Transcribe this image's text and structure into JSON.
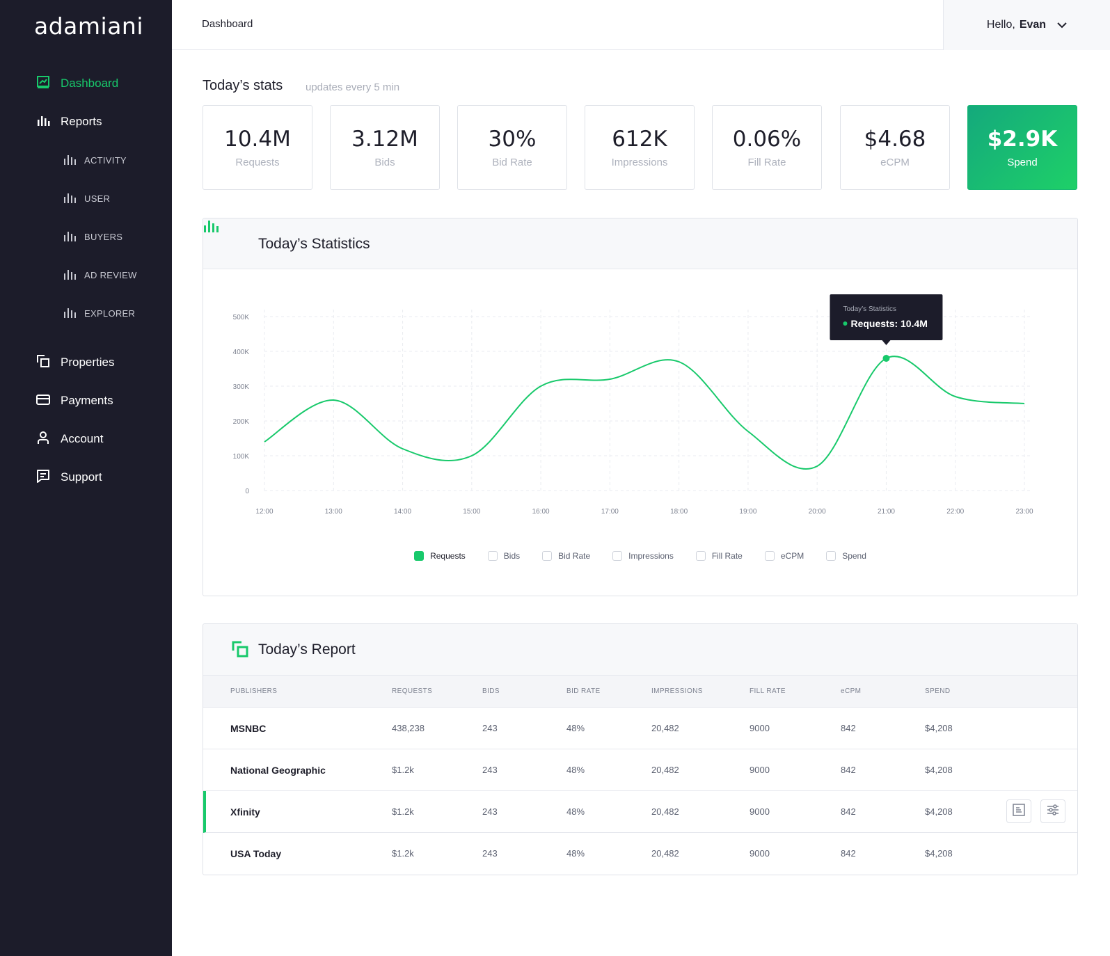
{
  "app": {
    "logo": "adamiani"
  },
  "sidebar": {
    "items": [
      {
        "label": "Dashboard",
        "icon": "dashboard-icon",
        "active": true
      },
      {
        "label": "Reports",
        "icon": "bar-chart-icon"
      },
      {
        "label": "Properties",
        "icon": "properties-icon"
      },
      {
        "label": "Payments",
        "icon": "credit-card-icon"
      },
      {
        "label": "Account",
        "icon": "user-icon"
      },
      {
        "label": "Support",
        "icon": "chat-icon"
      }
    ],
    "report_subitems": [
      "ACTIVITY",
      "USER",
      "BUYERS",
      "AD REVIEW",
      "EXPLORER"
    ]
  },
  "header": {
    "breadcrumb": "Dashboard",
    "greeting": "Hello,",
    "user_name": "Evan"
  },
  "stats": {
    "title": "Today’s stats",
    "subtitle": "updates every 5 min",
    "cards": [
      {
        "value": "10.4M",
        "label": "Requests"
      },
      {
        "value": "3.12M",
        "label": "Bids"
      },
      {
        "value": "30%",
        "label": "Bid Rate"
      },
      {
        "value": "612K",
        "label": "Impressions"
      },
      {
        "value": "0.06%",
        "label": "Fill Rate"
      },
      {
        "value": "$4.68",
        "label": "eCPM"
      },
      {
        "value": "$2.9K",
        "label": "Spend",
        "highlight": true
      }
    ]
  },
  "statistics_panel": {
    "title": "Today’s Statistics",
    "tooltip": {
      "title": "Today’s Statistics",
      "text": "Requests: 10.4M"
    },
    "legend": [
      {
        "label": "Requests",
        "checked": true
      },
      {
        "label": "Bids",
        "checked": false
      },
      {
        "label": "Bid Rate",
        "checked": false
      },
      {
        "label": "Impressions",
        "checked": false
      },
      {
        "label": "Fill Rate",
        "checked": false
      },
      {
        "label": "eCPM",
        "checked": false
      },
      {
        "label": "Spend",
        "checked": false
      }
    ]
  },
  "chart_data": {
    "type": "line",
    "x": [
      "12:00",
      "13:00",
      "14:00",
      "15:00",
      "16:00",
      "17:00",
      "18:00",
      "19:00",
      "20:00",
      "21:00",
      "22:00",
      "23:00"
    ],
    "series": [
      {
        "name": "Requests",
        "values": [
          140000,
          260000,
          120000,
          100000,
          300000,
          320000,
          370000,
          170000,
          70000,
          380000,
          270000,
          250000
        ]
      }
    ],
    "y_ticks": [
      "0",
      "100K",
      "200K",
      "300K",
      "400K",
      "500K"
    ],
    "ylim": [
      0,
      500000
    ],
    "grid": true,
    "highlight_index": 9,
    "line_color": "#18c96b"
  },
  "report_panel": {
    "title": "Today’s Report",
    "columns": [
      "PUBLISHERS",
      "REQUESTS",
      "BIDS",
      "BID RATE",
      "IMPRESSIONS",
      "FILL RATE",
      "eCPM",
      "SPEND"
    ],
    "rows": [
      [
        "MSNBC",
        "438,238",
        "243",
        "48%",
        "20,482",
        "9000",
        "842",
        "$4,208"
      ],
      [
        "National Geographic",
        "$1.2k",
        "243",
        "48%",
        "20,482",
        "9000",
        "842",
        "$4,208"
      ],
      [
        "Xfinity",
        "$1.2k",
        "243",
        "48%",
        "20,482",
        "9000",
        "842",
        "$4,208"
      ],
      [
        "USA Today",
        "$1.2k",
        "243",
        "48%",
        "20,482",
        "9000",
        "842",
        "$4,208"
      ]
    ],
    "selected_row": 2
  },
  "colors": {
    "accent": "#18c96b",
    "sidebar_bg": "#1c1c2a"
  }
}
